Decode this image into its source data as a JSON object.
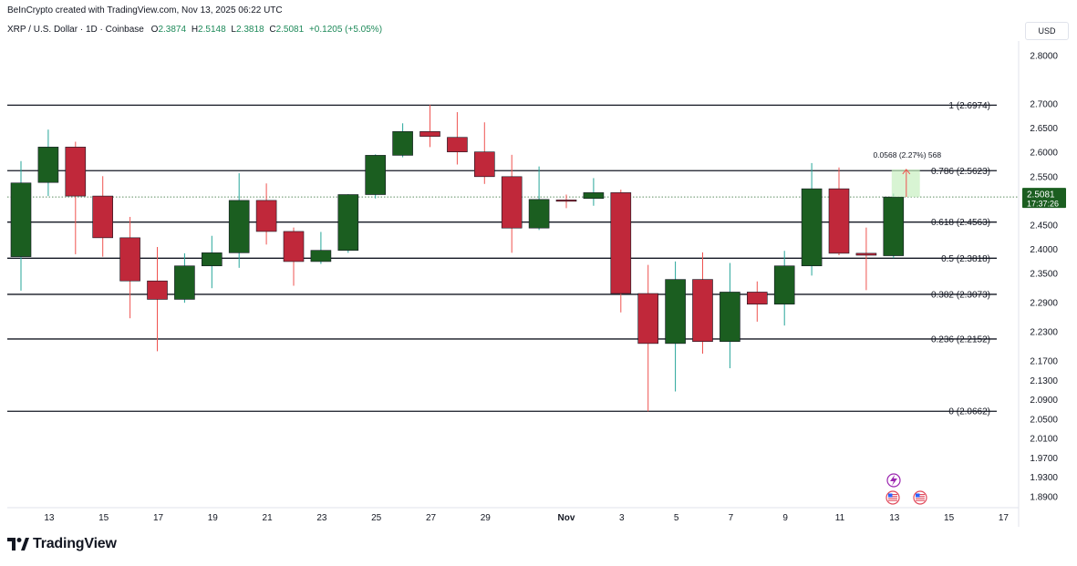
{
  "header": {
    "created_by": "BeInCrypto created with TradingView.com, Nov 13, 2025 06:22 UTC"
  },
  "symbol": {
    "name": "XRP / U.S. Dollar · 1D · Coinbase",
    "open_label": "O",
    "open": "2.3874",
    "high_label": "H",
    "high": "2.5148",
    "low_label": "L",
    "low": "2.3818",
    "close_label": "C",
    "close": "2.5081",
    "change": "+0.1205 (+5.05%)"
  },
  "currency_button": "USD",
  "price_badge": {
    "price": "2.5081",
    "countdown": "17:37:26"
  },
  "measure_label": "0.0568 (2.27%) 568",
  "footer": {
    "brand": "TradingView"
  },
  "colors": {
    "up": "#1b5e20",
    "down": "#c0283a",
    "up_wick": "#26a69a",
    "down_wick": "#ef5350",
    "badge": "#1b5e20"
  },
  "chart_data": {
    "type": "candlestick",
    "ylim": [
      1.87,
      2.84
    ],
    "y_ticks": [
      "2.8000",
      "2.7000",
      "2.6500",
      "2.6000",
      "2.5500",
      "2.4500",
      "2.4000",
      "2.3500",
      "2.2900",
      "2.2300",
      "2.1700",
      "2.1300",
      "2.0900",
      "2.0500",
      "2.0100",
      "1.9700",
      "1.9300",
      "1.8900"
    ],
    "y_tick_values": [
      2.8,
      2.7,
      2.65,
      2.6,
      2.55,
      2.45,
      2.4,
      2.35,
      2.29,
      2.23,
      2.17,
      2.13,
      2.09,
      2.05,
      2.01,
      1.97,
      1.93,
      1.89
    ],
    "x_ticks": [
      {
        "label": "13",
        "day": 1
      },
      {
        "label": "15",
        "day": 3
      },
      {
        "label": "17",
        "day": 5
      },
      {
        "label": "19",
        "day": 7
      },
      {
        "label": "21",
        "day": 9
      },
      {
        "label": "23",
        "day": 11
      },
      {
        "label": "25",
        "day": 13
      },
      {
        "label": "27",
        "day": 15
      },
      {
        "label": "29",
        "day": 17
      },
      {
        "label": "Nov",
        "day": 20
      },
      {
        "label": "3",
        "day": 22
      },
      {
        "label": "5",
        "day": 24
      },
      {
        "label": "7",
        "day": 26
      },
      {
        "label": "9",
        "day": 28
      },
      {
        "label": "11",
        "day": 30
      },
      {
        "label": "13",
        "day": 32
      },
      {
        "label": "15",
        "day": 34
      },
      {
        "label": "17",
        "day": 36
      }
    ],
    "candles": [
      {
        "day": 0,
        "o": 2.385,
        "h": 2.582,
        "l": 2.315,
        "c": 2.537
      },
      {
        "day": 1,
        "o": 2.538,
        "h": 2.647,
        "l": 2.51,
        "c": 2.611
      },
      {
        "day": 2,
        "o": 2.611,
        "h": 2.622,
        "l": 2.39,
        "c": 2.51
      },
      {
        "day": 3,
        "o": 2.51,
        "h": 2.551,
        "l": 2.385,
        "c": 2.424
      },
      {
        "day": 4,
        "o": 2.424,
        "h": 2.467,
        "l": 2.258,
        "c": 2.335
      },
      {
        "day": 5,
        "o": 2.335,
        "h": 2.405,
        "l": 2.19,
        "c": 2.297
      },
      {
        "day": 6,
        "o": 2.297,
        "h": 2.392,
        "l": 2.29,
        "c": 2.366
      },
      {
        "day": 7,
        "o": 2.366,
        "h": 2.428,
        "l": 2.32,
        "c": 2.393
      },
      {
        "day": 8,
        "o": 2.393,
        "h": 2.557,
        "l": 2.362,
        "c": 2.501
      },
      {
        "day": 9,
        "o": 2.501,
        "h": 2.536,
        "l": 2.41,
        "c": 2.437
      },
      {
        "day": 10,
        "o": 2.437,
        "h": 2.445,
        "l": 2.325,
        "c": 2.375
      },
      {
        "day": 11,
        "o": 2.375,
        "h": 2.436,
        "l": 2.37,
        "c": 2.398
      },
      {
        "day": 12,
        "o": 2.398,
        "h": 2.514,
        "l": 2.393,
        "c": 2.513
      },
      {
        "day": 13,
        "o": 2.513,
        "h": 2.596,
        "l": 2.505,
        "c": 2.594
      },
      {
        "day": 14,
        "o": 2.594,
        "h": 2.66,
        "l": 2.59,
        "c": 2.643
      },
      {
        "day": 15,
        "o": 2.643,
        "h": 2.698,
        "l": 2.611,
        "c": 2.633
      },
      {
        "day": 16,
        "o": 2.631,
        "h": 2.683,
        "l": 2.575,
        "c": 2.601
      },
      {
        "day": 17,
        "o": 2.601,
        "h": 2.662,
        "l": 2.535,
        "c": 2.55
      },
      {
        "day": 18,
        "o": 2.55,
        "h": 2.595,
        "l": 2.393,
        "c": 2.444
      },
      {
        "day": 19,
        "o": 2.444,
        "h": 2.571,
        "l": 2.44,
        "c": 2.503
      },
      {
        "day": 20,
        "o": 2.502,
        "h": 2.513,
        "l": 2.485,
        "c": 2.5
      },
      {
        "day": 21,
        "o": 2.505,
        "h": 2.547,
        "l": 2.49,
        "c": 2.517
      },
      {
        "day": 22,
        "o": 2.517,
        "h": 2.523,
        "l": 2.27,
        "c": 2.309
      },
      {
        "day": 23,
        "o": 2.309,
        "h": 2.368,
        "l": 2.066,
        "c": 2.206
      },
      {
        "day": 24,
        "o": 2.206,
        "h": 2.375,
        "l": 2.107,
        "c": 2.338
      },
      {
        "day": 25,
        "o": 2.338,
        "h": 2.394,
        "l": 2.185,
        "c": 2.21
      },
      {
        "day": 26,
        "o": 2.21,
        "h": 2.372,
        "l": 2.155,
        "c": 2.312
      },
      {
        "day": 27,
        "o": 2.312,
        "h": 2.334,
        "l": 2.251,
        "c": 2.287
      },
      {
        "day": 28,
        "o": 2.287,
        "h": 2.397,
        "l": 2.243,
        "c": 2.366
      },
      {
        "day": 29,
        "o": 2.366,
        "h": 2.578,
        "l": 2.346,
        "c": 2.525
      },
      {
        "day": 30,
        "o": 2.525,
        "h": 2.569,
        "l": 2.388,
        "c": 2.392
      },
      {
        "day": 31,
        "o": 2.392,
        "h": 2.445,
        "l": 2.316,
        "c": 2.388
      },
      {
        "day": 32,
        "o": 2.387,
        "h": 2.515,
        "l": 2.382,
        "c": 2.508
      }
    ],
    "fib_levels": [
      {
        "label": "1 (2.6974)",
        "value": 2.6974
      },
      {
        "label": "0.786 (2.5623)",
        "value": 2.5623
      },
      {
        "label": "0.618 (2.4563)",
        "value": 2.4563
      },
      {
        "label": "0.5 (2.3818)",
        "value": 2.3818
      },
      {
        "label": "0.382 (2.3073)",
        "value": 2.3073
      },
      {
        "label": "0.236 (2.2152)",
        "value": 2.2152
      },
      {
        "label": "0 (2.0662)",
        "value": 2.0662
      }
    ],
    "last_price": 2.5081,
    "measure": {
      "day_start": 32,
      "day_end": 33,
      "from": 2.5081,
      "to": 2.5649
    }
  }
}
